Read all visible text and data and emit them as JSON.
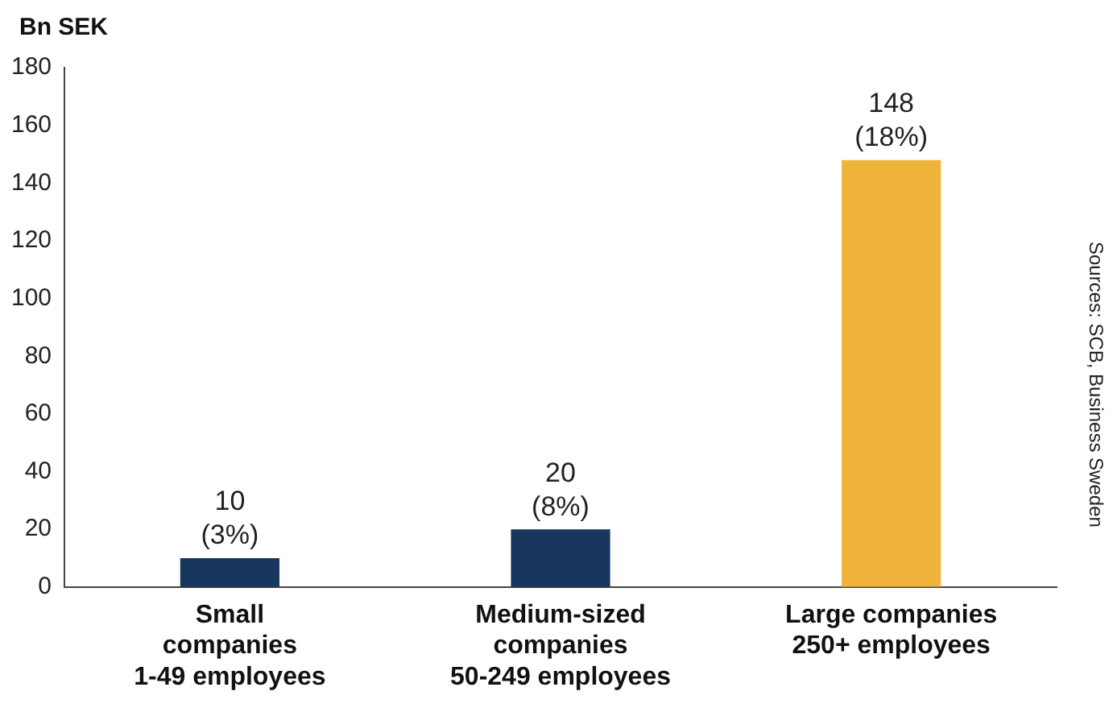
{
  "chart_data": {
    "type": "bar",
    "ylabel": "Bn SEK",
    "categories": [
      "Small\ncompanies\n1-49 employees",
      "Medium-sized\ncompanies\n50-249 employees",
      "Large companies\n250+ employees"
    ],
    "values": [
      10,
      20,
      148
    ],
    "colors": [
      "#17375e",
      "#17375e",
      "#f0b43c"
    ],
    "value_labels": [
      "10\n(3%)",
      "20\n(8%)",
      "148\n(18%)"
    ],
    "ylim": [
      0,
      180
    ],
    "yticks": [
      0,
      20,
      40,
      60,
      80,
      100,
      120,
      140,
      160,
      180
    ],
    "grid": false,
    "legend": false,
    "annotations": [
      "Sources: SCB, Business Sweden"
    ]
  }
}
